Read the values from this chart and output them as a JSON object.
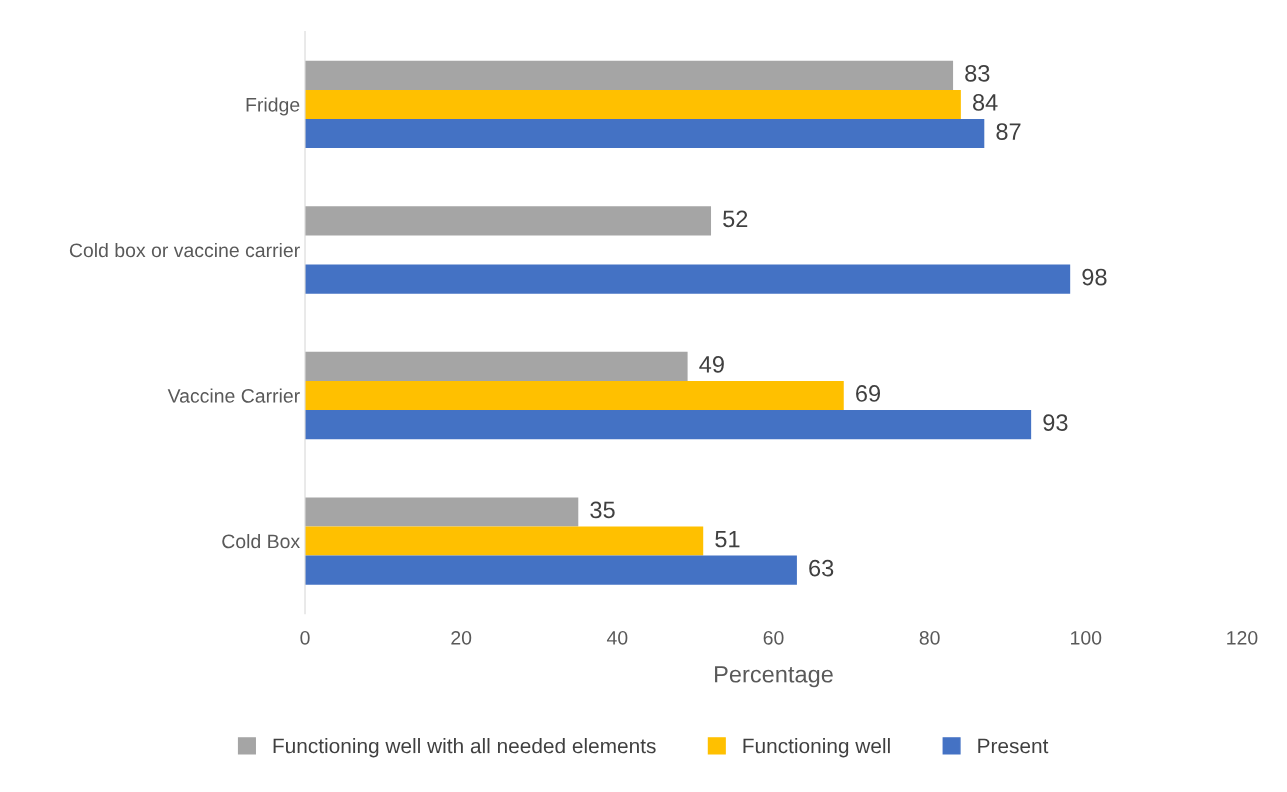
{
  "chart_data": {
    "type": "bar",
    "orientation": "horizontal",
    "xlabel": "Percentage",
    "categories": [
      "Fridge",
      "Cold box or vaccine carrier",
      "Vaccine Carrier",
      "Cold Box"
    ],
    "series": [
      {
        "name": "Functioning well with all needed elements",
        "color": "#a5a5a5",
        "values": [
          83,
          52,
          49,
          35
        ]
      },
      {
        "name": "Functioning well",
        "color": "#ffc000",
        "values": [
          84,
          null,
          69,
          51
        ]
      },
      {
        "name": "Present",
        "color": "#4472c4",
        "values": [
          87,
          98,
          93,
          63
        ]
      }
    ],
    "xlim": [
      0,
      120
    ],
    "xticks": [
      0,
      20,
      40,
      60,
      80,
      100,
      120
    ],
    "data_labels": true,
    "grid": false,
    "legend": "bottom"
  }
}
